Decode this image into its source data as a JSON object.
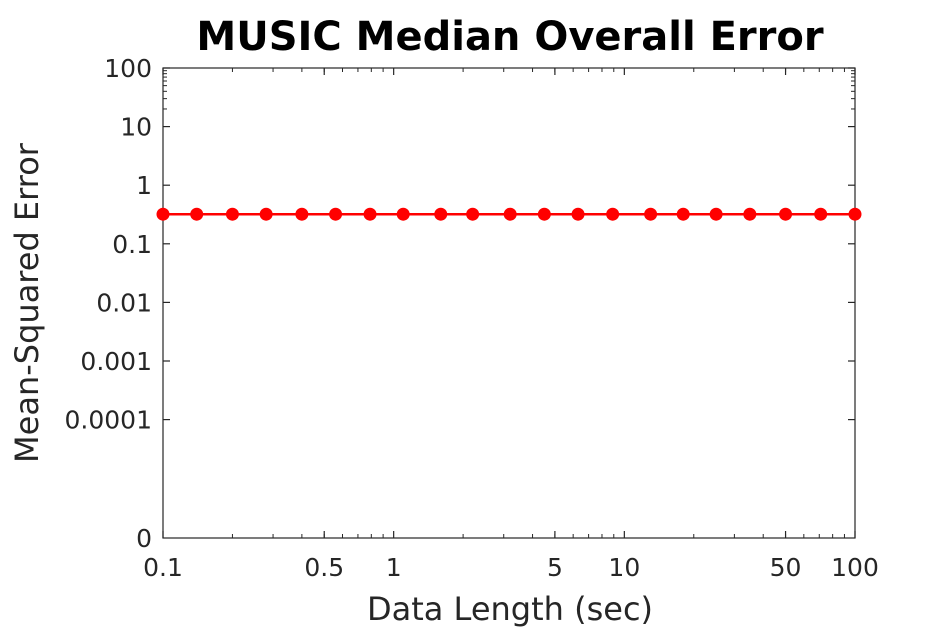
{
  "chart_data": {
    "type": "line",
    "title": "MUSIC Median Overall Error",
    "xlabel": "Data Length (sec)",
    "ylabel": "Mean-Squared Error",
    "x_scale": "log",
    "y_scale": "log",
    "xlim": [
      0.1,
      100
    ],
    "y_axis_bottom_label": "0",
    "grid": false,
    "legend": "none",
    "x_ticks": [
      {
        "value": 0.1,
        "label": "0.1"
      },
      {
        "value": 0.5,
        "label": "0.5"
      },
      {
        "value": 1,
        "label": "1"
      },
      {
        "value": 5,
        "label": "5"
      },
      {
        "value": 10,
        "label": "10"
      },
      {
        "value": 50,
        "label": "50"
      },
      {
        "value": 100,
        "label": "100"
      }
    ],
    "y_ticks": [
      {
        "value": 100,
        "label": "100"
      },
      {
        "value": 10,
        "label": "10"
      },
      {
        "value": 1,
        "label": "1"
      },
      {
        "value": 0.1,
        "label": "0.1"
      },
      {
        "value": 0.01,
        "label": "0.01"
      },
      {
        "value": 0.001,
        "label": "0.001"
      },
      {
        "value": 0.0001,
        "label": "0.0001"
      }
    ],
    "series": [
      {
        "color": "#ff0000",
        "marker": "circle",
        "x": [
          0.1,
          0.14,
          0.2,
          0.28,
          0.4,
          0.56,
          0.79,
          1.1,
          1.6,
          2.2,
          3.2,
          4.5,
          6.3,
          8.9,
          13,
          18,
          25,
          35,
          50,
          71,
          100
        ],
        "y": [
          0.32,
          0.32,
          0.32,
          0.32,
          0.32,
          0.32,
          0.32,
          0.32,
          0.32,
          0.32,
          0.32,
          0.32,
          0.32,
          0.32,
          0.32,
          0.32,
          0.32,
          0.32,
          0.32,
          0.32,
          0.32
        ]
      }
    ]
  }
}
